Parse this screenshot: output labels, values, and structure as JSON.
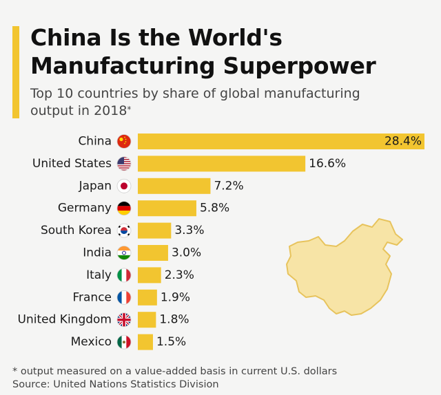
{
  "header": {
    "title_line1": "China Is the World's",
    "title_line2": "Manufacturing Superpower",
    "subtitle_line1": "Top 10 countries by share of global manufacturing",
    "subtitle_line2": "output in 2018",
    "subtitle_mark": "*"
  },
  "chart_data": {
    "type": "bar",
    "orientation": "horizontal",
    "title": "China Is the World's Manufacturing Superpower",
    "subtitle": "Top 10 countries by share of global manufacturing output in 2018*",
    "categories": [
      "China",
      "United States",
      "Japan",
      "Germany",
      "South Korea",
      "India",
      "Italy",
      "France",
      "United Kingdom",
      "Mexico"
    ],
    "values": [
      28.4,
      16.6,
      7.2,
      5.8,
      3.3,
      3.0,
      2.3,
      1.9,
      1.8,
      1.5
    ],
    "value_labels": [
      "28.4%",
      "16.6%",
      "7.2%",
      "5.8%",
      "3.3%",
      "3.0%",
      "2.3%",
      "1.9%",
      "1.8%",
      "1.5%"
    ],
    "flags": [
      "china-flag-icon",
      "usa-flag-icon",
      "japan-flag-icon",
      "germany-flag-icon",
      "south-korea-flag-icon",
      "india-flag-icon",
      "italy-flag-icon",
      "france-flag-icon",
      "uk-flag-icon",
      "mexico-flag-icon"
    ],
    "xlim": [
      0,
      28.4
    ],
    "grid": false,
    "legend": "none",
    "bar_color": "#f2c530",
    "decoration": "china-map-icon"
  },
  "footer": {
    "note": "* output measured on a value-added basis in current U.S. dollars",
    "source": "Source: United Nations Statistics Division"
  },
  "colors": {
    "accent": "#f2c530",
    "map_fill": "#f7e4a6",
    "map_stroke": "#e7c35c"
  }
}
